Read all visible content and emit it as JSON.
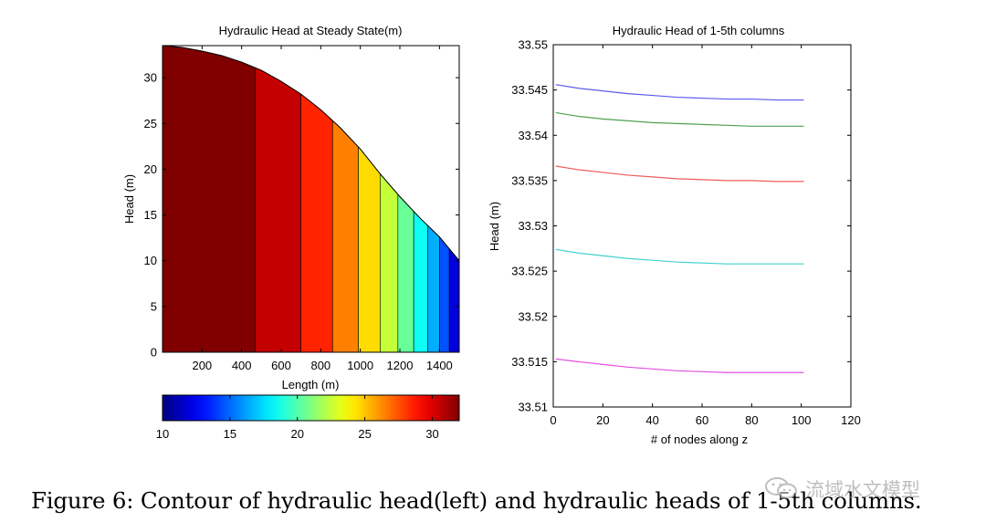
{
  "chart_data": [
    {
      "type": "heatmap",
      "title": "Hydraulic Head at Steady State(m)",
      "xlabel": "Length (m)",
      "ylabel": "Head (m)",
      "xlim": [
        0,
        1500
      ],
      "ylim": [
        0,
        33.5
      ],
      "xticks": [
        200,
        400,
        600,
        800,
        1000,
        1200,
        1400
      ],
      "yticks": [
        0,
        5,
        10,
        15,
        20,
        25,
        30
      ],
      "free_surface": {
        "x": [
          0,
          100,
          200,
          300,
          400,
          500,
          600,
          700,
          800,
          900,
          1000,
          1100,
          1200,
          1300,
          1400,
          1450,
          1500
        ],
        "head": [
          33.5,
          33.3,
          32.9,
          32.4,
          31.7,
          30.8,
          29.6,
          28.2,
          26.5,
          24.5,
          22.2,
          19.5,
          17.0,
          14.7,
          12.6,
          11.3,
          10.0
        ]
      },
      "contour_boundaries_x": [
        0,
        470,
        700,
        860,
        990,
        1100,
        1190,
        1270,
        1340,
        1400,
        1450,
        1500
      ],
      "contour_band_values": [
        32.5,
        30.5,
        28.5,
        26.5,
        24.5,
        22.5,
        20.5,
        18.5,
        16.5,
        14.5,
        12.0
      ],
      "colorbar": {
        "range": [
          10,
          32
        ],
        "ticks": [
          10,
          15,
          20,
          25,
          30
        ],
        "colormap": "jet"
      },
      "grid": false
    },
    {
      "type": "line",
      "title": "Hydraulic Head of 1-5th columns",
      "xlabel": "# of nodes along z",
      "ylabel": "Head (m)",
      "xlim": [
        0,
        120
      ],
      "ylim": [
        33.51,
        33.55
      ],
      "xticks": [
        0,
        20,
        40,
        60,
        80,
        100,
        120
      ],
      "yticks": [
        33.51,
        33.515,
        33.52,
        33.525,
        33.53,
        33.535,
        33.54,
        33.545,
        33.55
      ],
      "x": [
        1,
        10,
        20,
        30,
        40,
        50,
        60,
        70,
        80,
        90,
        101
      ],
      "series": [
        {
          "color": "#5a5af0",
          "values": [
            33.5456,
            33.5452,
            33.5449,
            33.5446,
            33.5444,
            33.5442,
            33.5441,
            33.544,
            33.544,
            33.5439,
            33.5439
          ]
        },
        {
          "color": "#50a050",
          "values": [
            33.5425,
            33.5421,
            33.5418,
            33.5416,
            33.5414,
            33.5413,
            33.5412,
            33.5411,
            33.541,
            33.541,
            33.541
          ]
        },
        {
          "color": "#f05a5a",
          "values": [
            33.5366,
            33.5362,
            33.5359,
            33.5356,
            33.5354,
            33.5352,
            33.5351,
            33.535,
            33.535,
            33.5349,
            33.5349
          ]
        },
        {
          "color": "#40d0d0",
          "values": [
            33.5274,
            33.527,
            33.5267,
            33.5264,
            33.5262,
            33.526,
            33.5259,
            33.5258,
            33.5258,
            33.5258,
            33.5258
          ]
        },
        {
          "color": "#e050e0",
          "values": [
            33.5153,
            33.515,
            33.5147,
            33.5144,
            33.5142,
            33.514,
            33.5139,
            33.5138,
            33.5138,
            33.5138,
            33.5138
          ]
        }
      ],
      "grid": false
    }
  ],
  "caption": "Figure 6: Contour of hydraulic head(left) and hydraulic heads of 1-5th columns.",
  "watermark": {
    "text": "流域水文模型",
    "icon": "wechat-icon"
  }
}
